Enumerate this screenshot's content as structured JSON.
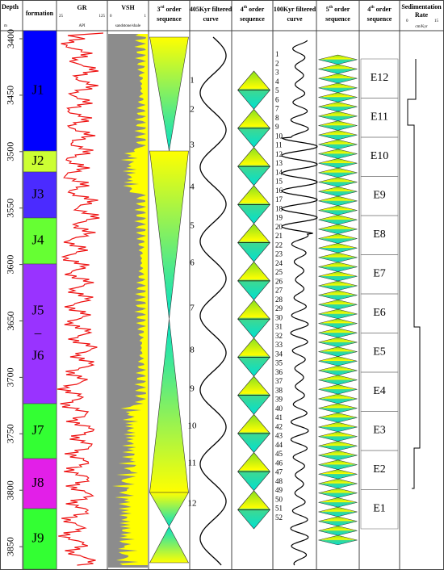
{
  "header": {
    "depth": "Depth",
    "depth_unit": "m",
    "formation": "formation",
    "gr": "GR",
    "gr_min": "25",
    "gr_max": "125",
    "gr_unit": "API",
    "vsh": "VSH",
    "vsh_min": "0",
    "vsh_max": "1",
    "vsh_unit": "sandstone/shale",
    "third": {
      "num": "3",
      "sup": "rd",
      "text": " order",
      "line2": "sequence"
    },
    "k405": [
      "405Kyr filtered",
      "curve"
    ],
    "fourth": {
      "num": "4",
      "sup": "th",
      "text": " order",
      "line2": "sequence"
    },
    "k100": [
      "100Kyr filtered",
      "curve"
    ],
    "fifth": {
      "num": "5",
      "sup": "th",
      "text": " order",
      "line2": "sequence"
    },
    "fourth_b": {
      "num": "4",
      "sup": "th",
      "text": " order",
      "line2": "sequence"
    },
    "sed": [
      "Sedimentation",
      "Rate"
    ],
    "sed_min": "0",
    "sed_max": "15",
    "sed_unit": "cm/Kyr"
  },
  "depth_ticks": [
    "3400",
    "3450",
    "3500",
    "3550",
    "3600",
    "3650",
    "3700",
    "3750",
    "3800",
    "3850"
  ],
  "formations": [
    [
      "J1"
    ],
    [
      "J2"
    ],
    [
      "J3"
    ],
    [
      "J4"
    ],
    [
      "J5",
      "–",
      "J6"
    ],
    [
      "J7"
    ],
    [
      "J8"
    ],
    [
      "J9"
    ]
  ],
  "sequence_3rd_labels": [
    "1",
    "2",
    "3",
    "4",
    "5",
    "6",
    "7",
    "8",
    "9",
    "10",
    "11",
    "12"
  ],
  "cycles_100kyr": [
    "1",
    "2",
    "3",
    "4",
    "5",
    "6",
    "7",
    "8",
    "9",
    "10",
    "11",
    "12",
    "13",
    "14",
    "15",
    "16",
    "17",
    "18",
    "19",
    "20",
    "21",
    "22",
    "23",
    "24",
    "25",
    "26",
    "27",
    "28",
    "29",
    "30",
    "31",
    "32",
    "33",
    "34",
    "35",
    "36",
    "37",
    "38",
    "39",
    "40",
    "41",
    "42",
    "43",
    "44",
    "45",
    "46",
    "47",
    "48",
    "49",
    "50",
    "51",
    "52"
  ],
  "sequences_4th": [
    "E12",
    "E11",
    "E10",
    "E9",
    "E8",
    "E7",
    "E6",
    "E5",
    "E4",
    "E3",
    "E2",
    "E1"
  ]
}
